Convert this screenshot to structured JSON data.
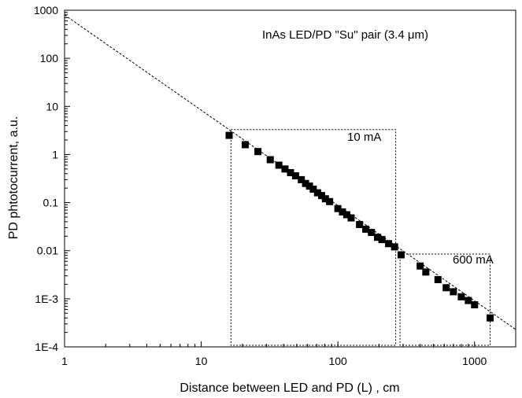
{
  "chart_data": {
    "type": "scatter",
    "title": "",
    "xlabel": "Distance between LED and PD (L) , cm",
    "ylabel": "PD phtotocurrent, a.u.",
    "x_scale": "log",
    "y_scale": "log",
    "xlim": [
      1,
      2000
    ],
    "ylim": [
      0.0001,
      1000
    ],
    "grid": false,
    "x_ticks": [
      {
        "value": 1,
        "label": "1"
      },
      {
        "value": 10,
        "label": "10"
      },
      {
        "value": 100,
        "label": "100"
      },
      {
        "value": 1000,
        "label": "1000"
      }
    ],
    "y_ticks": [
      {
        "value": 1000,
        "label": "1000"
      },
      {
        "value": 100,
        "label": "100"
      },
      {
        "value": 10,
        "label": "10"
      },
      {
        "value": 1,
        "label": "1"
      },
      {
        "value": 0.1,
        "label": "0.1"
      },
      {
        "value": 0.01,
        "label": "0.01"
      },
      {
        "value": 0.001,
        "label": "1E-3"
      },
      {
        "value": 0.0001,
        "label": "1E-4"
      }
    ],
    "annotations": {
      "pair_label": "InAs LED/PD \"Su\" pair (3.4 μm)",
      "box_10mA_label": "10 mA",
      "box_600mA_label": "600 mA"
    },
    "fit_line": {
      "style": "dashed",
      "from": [
        1,
        800
      ],
      "to": [
        2000,
        0.00023
      ]
    },
    "boxes": [
      {
        "name": "10 mA",
        "x_range": [
          16.5,
          265
        ],
        "y_range": [
          0.0001,
          3.3
        ]
      },
      {
        "name": "600 mA",
        "x_range": [
          285,
          1300
        ],
        "y_range": [
          0.0001,
          0.0085
        ]
      }
    ],
    "series": [
      {
        "marker": "square",
        "points": [
          [
            16,
            2.5
          ],
          [
            21,
            1.6
          ],
          [
            26,
            1.15
          ],
          [
            32,
            0.78
          ],
          [
            37,
            0.6
          ],
          [
            41,
            0.5
          ],
          [
            45,
            0.42
          ],
          [
            49,
            0.36
          ],
          [
            54,
            0.3
          ],
          [
            58,
            0.25
          ],
          [
            62,
            0.22
          ],
          [
            66,
            0.19
          ],
          [
            71,
            0.16
          ],
          [
            76,
            0.14
          ],
          [
            81,
            0.12
          ],
          [
            87,
            0.105
          ],
          [
            100,
            0.075
          ],
          [
            108,
            0.064
          ],
          [
            116,
            0.056
          ],
          [
            125,
            0.048
          ],
          [
            144,
            0.035
          ],
          [
            160,
            0.028
          ],
          [
            176,
            0.024
          ],
          [
            195,
            0.019
          ],
          [
            210,
            0.017
          ],
          [
            235,
            0.014
          ],
          [
            260,
            0.012
          ],
          [
            290,
            0.0082
          ],
          [
            400,
            0.0048
          ],
          [
            440,
            0.0036
          ],
          [
            540,
            0.0025
          ],
          [
            620,
            0.0017
          ],
          [
            700,
            0.0014
          ],
          [
            800,
            0.0011
          ],
          [
            900,
            0.00092
          ],
          [
            1000,
            0.00075
          ],
          [
            1300,
            0.0004
          ]
        ]
      }
    ]
  }
}
